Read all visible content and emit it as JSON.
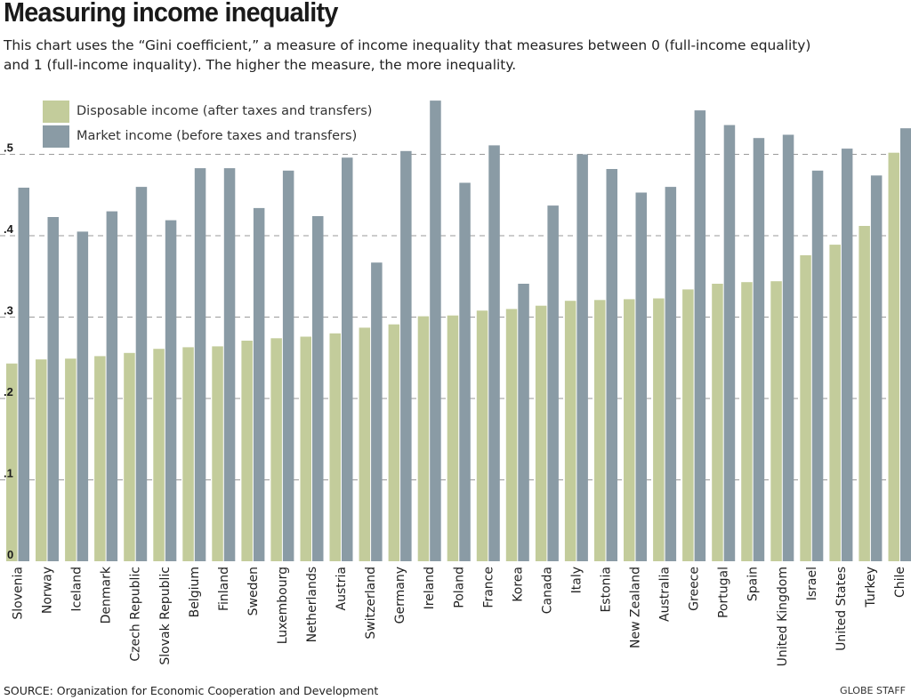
{
  "header": {
    "title": "Measuring income inequality",
    "subtitle_line1": "This chart uses the “Gini coefficient,”  a measure of income inequality that measures between 0 (full-income equality)",
    "subtitle_line2": "and 1 (full-income inquality). The higher the measure, the more inequality."
  },
  "footer": {
    "source": "SOURCE: Organization for Economic Cooperation and Development",
    "credit": "GLOBE STAFF"
  },
  "colors": {
    "disposable": "#c3cc9b",
    "market": "#8a9ba5",
    "grid": "#9a9a9a"
  },
  "chart_data": {
    "type": "bar",
    "title": "Measuring income inequality",
    "xlabel": "",
    "ylabel": "Gini coefficient",
    "ylim": [
      0,
      0.58
    ],
    "yticks": [
      0,
      0.1,
      0.2,
      0.3,
      0.4,
      0.5
    ],
    "ytick_labels": [
      "0",
      ".1",
      ".2",
      ".3",
      ".4",
      ".5"
    ],
    "grid": true,
    "legend_position": "top-left",
    "categories": [
      "Slovenia",
      "Norway",
      "Iceland",
      "Denmark",
      "Czech Republic",
      "Slovak Republic",
      "Belgium",
      "Finland",
      "Sweden",
      "Luxembourg",
      "Netherlands",
      "Austria",
      "Switzerland",
      "Germany",
      "Ireland",
      "Poland",
      "France",
      "Korea",
      "Canada",
      "Italy",
      "Estonia",
      "New Zealand",
      "Australia",
      "Greece",
      "Portugal",
      "Spain",
      "United Kingdom",
      "Israel",
      "United States",
      "Turkey",
      "Chile"
    ],
    "series": [
      {
        "name": "Disposable income (after taxes and transfers)",
        "key": "disposable",
        "values": [
          0.243,
          0.248,
          0.249,
          0.252,
          0.256,
          0.261,
          0.263,
          0.264,
          0.271,
          0.274,
          0.276,
          0.28,
          0.287,
          0.291,
          0.301,
          0.302,
          0.308,
          0.31,
          0.314,
          0.32,
          0.321,
          0.322,
          0.323,
          0.334,
          0.341,
          0.343,
          0.344,
          0.376,
          0.389,
          0.412,
          0.502
        ]
      },
      {
        "name": "Market income (before taxes and transfers)",
        "key": "market",
        "values": [
          0.459,
          0.423,
          0.405,
          0.43,
          0.46,
          0.419,
          0.483,
          0.483,
          0.434,
          0.48,
          0.424,
          0.496,
          0.367,
          0.504,
          0.566,
          0.465,
          0.511,
          0.341,
          0.437,
          0.5,
          0.482,
          0.453,
          0.46,
          0.554,
          0.536,
          0.52,
          0.524,
          0.48,
          0.507,
          0.474,
          0.532
        ]
      }
    ]
  }
}
